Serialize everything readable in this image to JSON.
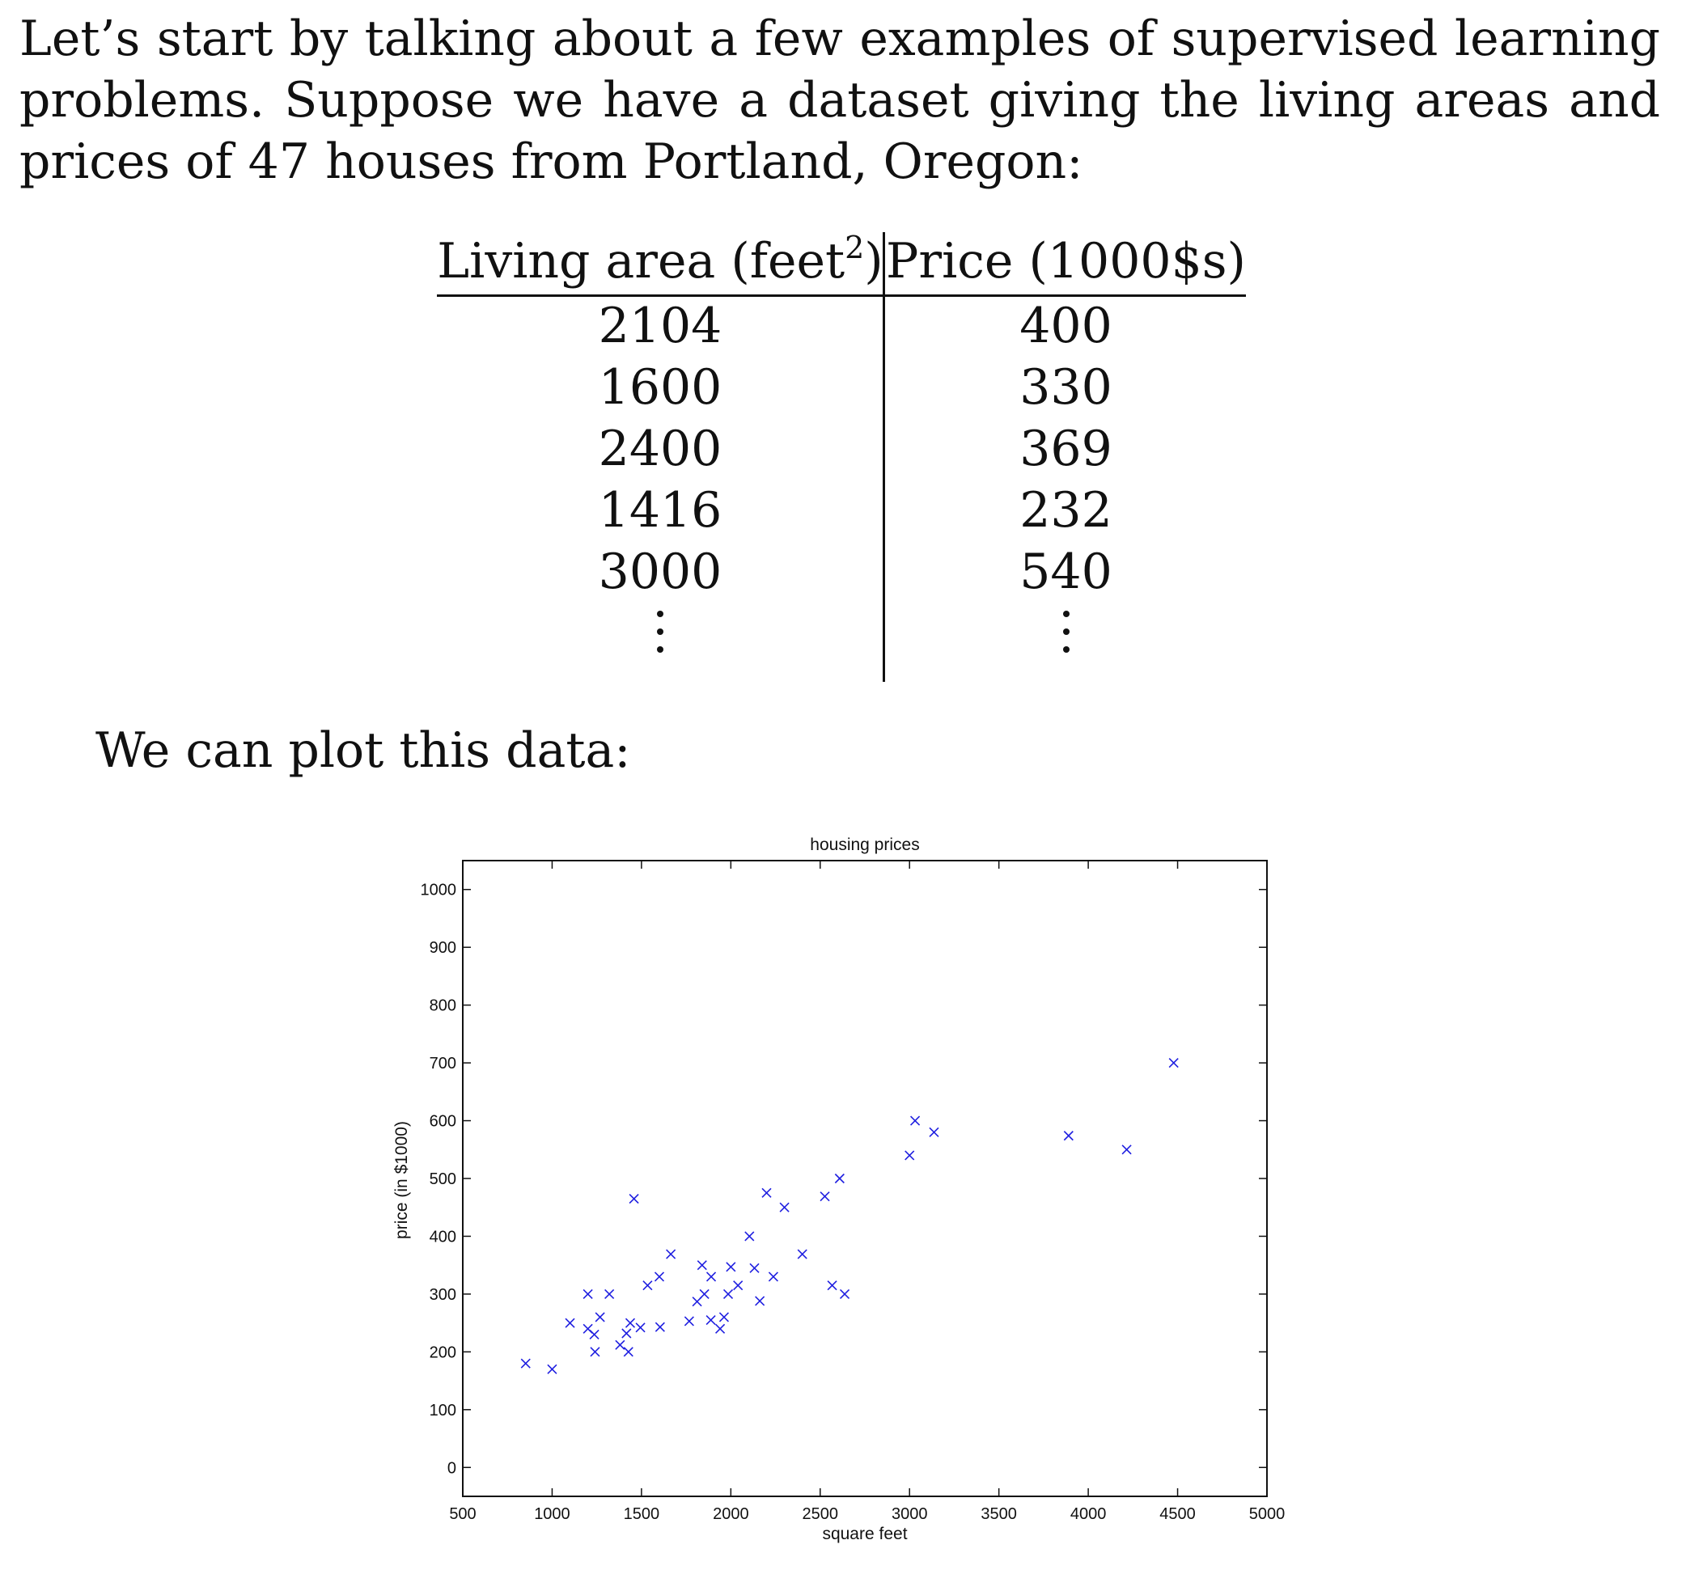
{
  "paragraph": {
    "text": "Let’s start by talking about a few examples of supervised learning problems. Suppose we have a dataset giving the living areas and prices of 47 houses from Portland, Oregon:"
  },
  "table": {
    "header_area_prefix": "Living area (feet",
    "header_area_power": "2",
    "header_area_suffix": ")",
    "header_price": "Price (1000$s)",
    "rows": [
      {
        "area": "2104",
        "price": "400"
      },
      {
        "area": "1600",
        "price": "330"
      },
      {
        "area": "2400",
        "price": "369"
      },
      {
        "area": "1416",
        "price": "232"
      },
      {
        "area": "3000",
        "price": "540"
      }
    ]
  },
  "lead_text": "We can plot this data:",
  "chart_data": {
    "type": "scatter",
    "title": "housing prices",
    "xlabel": "square feet",
    "ylabel": "price (in $1000)",
    "xlim": [
      500,
      5000
    ],
    "ylim": [
      -50,
      1050
    ],
    "xticks": [
      500,
      1000,
      1500,
      2000,
      2500,
      3000,
      3500,
      4000,
      4500,
      5000
    ],
    "yticks": [
      0,
      100,
      200,
      300,
      400,
      500,
      600,
      700,
      800,
      900,
      1000
    ],
    "marker": "x",
    "color": "#1f1fe0",
    "grid": false,
    "x": [
      852,
      1000,
      1100,
      1200,
      1200,
      1236,
      1240,
      1268,
      1320,
      1380,
      1416,
      1427,
      1437,
      1458,
      1494,
      1534,
      1600,
      1604,
      1664,
      1767,
      1811,
      1839,
      1852,
      1888,
      1890,
      1940,
      1962,
      1985,
      2000,
      2040,
      2104,
      2132,
      2162,
      2200,
      2238,
      2300,
      2400,
      2526,
      2567,
      2609,
      2637,
      3000,
      3031,
      3137,
      3890,
      4215,
      4478
    ],
    "y": [
      180,
      170,
      250,
      300,
      240,
      230,
      200,
      260,
      300,
      212,
      232,
      200,
      250,
      465,
      242,
      315,
      330,
      243,
      369,
      253,
      287,
      350,
      300,
      255,
      330,
      240,
      260,
      300,
      347,
      315,
      400,
      345,
      288,
      475,
      330,
      450,
      369,
      469,
      315,
      500,
      300,
      540,
      600,
      580,
      574,
      550,
      700
    ]
  }
}
